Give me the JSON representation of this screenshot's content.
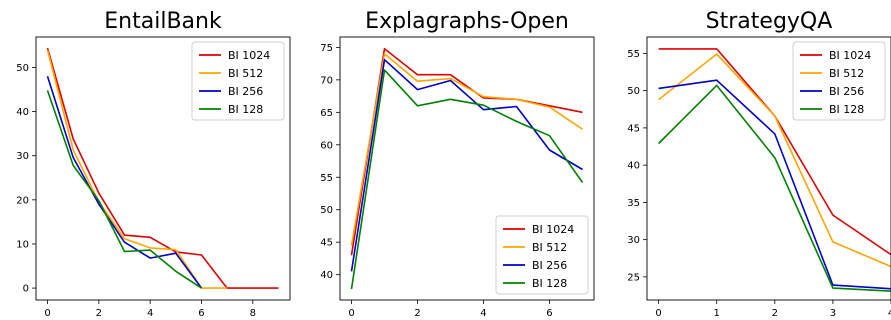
{
  "chart_data": [
    {
      "type": "line",
      "title": "EntailBank",
      "xlabel": "",
      "ylabel": "",
      "xlim": [
        -0.45,
        9.45
      ],
      "ylim": [
        -2.7,
        56.9
      ],
      "xticks": [
        0,
        2,
        4,
        6,
        8
      ],
      "yticks": [
        0,
        10,
        20,
        30,
        40,
        50
      ],
      "grid": false,
      "legend_position": "top-right",
      "series": [
        {
          "name": "BI 1024",
          "color": "#e00000",
          "x": [
            0,
            1,
            2,
            3,
            4,
            5,
            6,
            7,
            8,
            9
          ],
          "y": [
            54.4,
            33.8,
            21.5,
            12.0,
            11.5,
            8.2,
            7.5,
            0.0,
            0.0,
            0.0
          ]
        },
        {
          "name": "BI 512",
          "color": "#ffa500",
          "x": [
            0,
            1,
            2,
            3,
            4,
            5,
            6,
            7
          ],
          "y": [
            54.0,
            31.3,
            19.5,
            11.2,
            9.1,
            8.7,
            0.0,
            0.0
          ]
        },
        {
          "name": "BI 256",
          "color": "#0000cc",
          "x": [
            0,
            1,
            2,
            3,
            4,
            5,
            6
          ],
          "y": [
            48.0,
            29.6,
            19.0,
            10.4,
            6.8,
            7.9,
            0.0
          ]
        },
        {
          "name": "BI 128",
          "color": "#008000",
          "x": [
            0,
            1,
            2,
            3,
            4,
            5,
            6
          ],
          "y": [
            44.8,
            27.8,
            19.8,
            8.3,
            8.6,
            3.8,
            0.0
          ]
        }
      ]
    },
    {
      "type": "line",
      "title": "Explagraphs-Open",
      "xlabel": "",
      "ylabel": "",
      "xlim": [
        -0.35,
        7.35
      ],
      "ylim": [
        36.1,
        76.6
      ],
      "xticks": [
        0,
        2,
        4,
        6
      ],
      "yticks": [
        40,
        45,
        50,
        55,
        60,
        65,
        70,
        75
      ],
      "grid": false,
      "legend_position": "bottom-right",
      "series": [
        {
          "name": "BI 1024",
          "color": "#e00000",
          "x": [
            0,
            1,
            2,
            3,
            4,
            5,
            6,
            7
          ],
          "y": [
            43.0,
            74.8,
            70.8,
            70.8,
            67.2,
            67.0,
            66.0,
            65.0
          ]
        },
        {
          "name": "BI 512",
          "color": "#ffa500",
          "x": [
            0,
            1,
            2,
            3,
            4,
            5,
            6,
            7
          ],
          "y": [
            44.5,
            74.0,
            69.8,
            70.2,
            67.4,
            67.0,
            65.8,
            62.4
          ]
        },
        {
          "name": "BI 256",
          "color": "#0000cc",
          "x": [
            0,
            1,
            2,
            3,
            4,
            5,
            6,
            7
          ],
          "y": [
            40.5,
            73.1,
            68.5,
            69.9,
            65.4,
            65.9,
            59.2,
            56.2
          ]
        },
        {
          "name": "BI 128",
          "color": "#008000",
          "x": [
            0,
            1,
            2,
            3,
            4,
            5,
            6,
            7
          ],
          "y": [
            37.8,
            71.5,
            66.0,
            67.0,
            66.1,
            63.6,
            61.4,
            54.2
          ]
        }
      ]
    },
    {
      "type": "line",
      "title": "StrategyQA",
      "xlabel": "",
      "ylabel": "",
      "xlim": [
        -0.2,
        4.0
      ],
      "ylim": [
        21.9,
        57.2
      ],
      "xticks": [
        0,
        1,
        2,
        3,
        4
      ],
      "yticks": [
        25,
        30,
        35,
        40,
        45,
        50,
        55
      ],
      "grid": false,
      "legend_position": "top-right",
      "series": [
        {
          "name": "BI 1024",
          "color": "#e00000",
          "x": [
            0,
            1,
            2,
            3,
            4
          ],
          "y": [
            55.6,
            55.6,
            46.6,
            33.3,
            28.0
          ]
        },
        {
          "name": "BI 512",
          "color": "#ffa500",
          "x": [
            0,
            1,
            2,
            3,
            4
          ],
          "y": [
            48.8,
            54.9,
            46.6,
            29.7,
            26.4
          ]
        },
        {
          "name": "BI 256",
          "color": "#0000cc",
          "x": [
            0,
            1,
            2,
            3,
            4
          ],
          "y": [
            50.3,
            51.4,
            44.2,
            23.9,
            23.4
          ]
        },
        {
          "name": "BI 128",
          "color": "#008000",
          "x": [
            0,
            1,
            2,
            3,
            4
          ],
          "y": [
            42.9,
            50.7,
            41.0,
            23.5,
            23.1
          ]
        }
      ]
    }
  ]
}
